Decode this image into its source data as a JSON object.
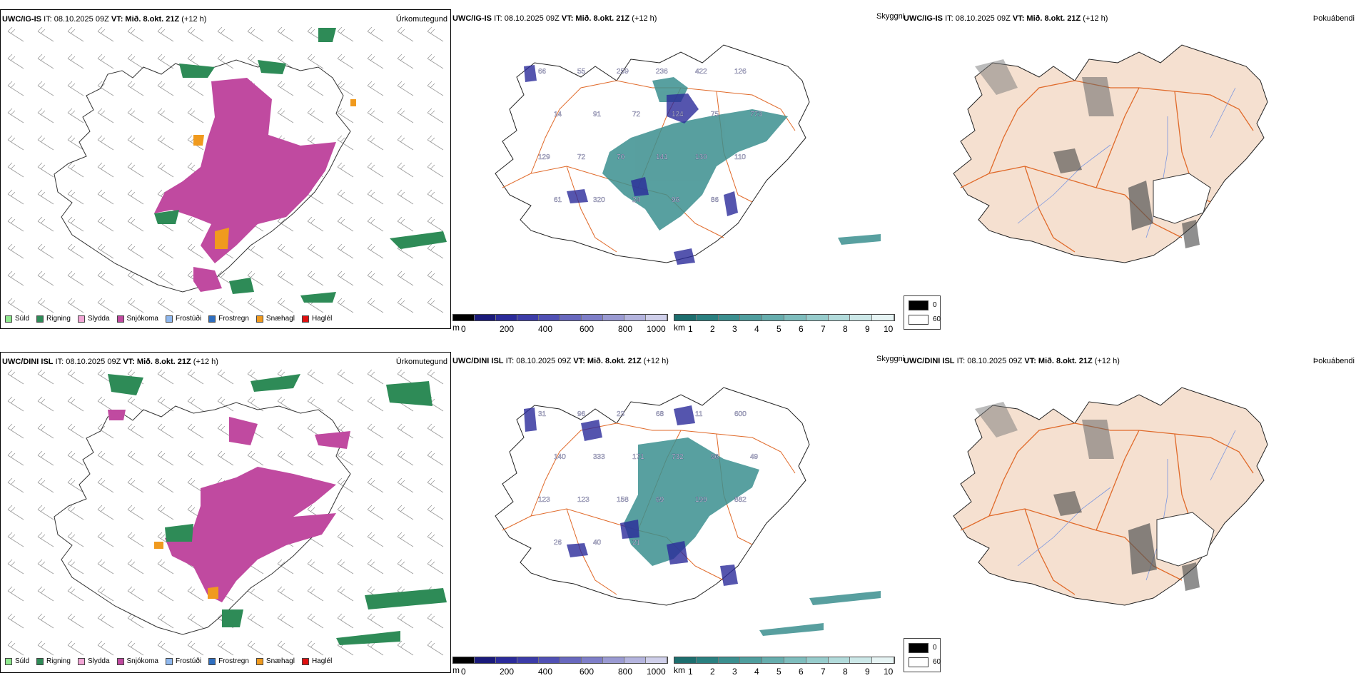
{
  "rows": [
    {
      "left_header": {
        "model": "UWC/IG-IS",
        "it": "IT: 08.10.2025 09Z",
        "vt": "VT: Mið. 8.okt. 21Z",
        "lead": "(+12 h)"
      },
      "left_title": "Úrkomutegund",
      "middle_header": {
        "model": "UWC/IG-IS",
        "it": "IT: 08.10.2025 09Z",
        "vt": "VT: Mið. 8.okt. 21Z",
        "lead": "(+12 h)"
      },
      "middle_title": "Skyggni",
      "right_header": {
        "model": "UWC/IG-IS",
        "it": "IT: 08.10.2025 09Z",
        "vt": "VT: Mið. 8.okt. 21Z",
        "lead": "(+12 h)"
      },
      "right_title": "Þokuábendi",
      "map_labels": [
        "66",
        "55",
        "259",
        "236",
        "422",
        "126",
        "14",
        "91",
        "72",
        "124",
        "75",
        "773",
        "129",
        "72",
        "70",
        "141",
        "130",
        "110",
        "61",
        "320",
        "24",
        "96",
        "86"
      ]
    },
    {
      "left_header": {
        "model": "UWC/DINI ISL",
        "it": "IT: 08.10.2025 09Z",
        "vt": "VT: Mið. 8.okt. 21Z",
        "lead": "(+12 h)"
      },
      "left_title": "Úrkomutegund",
      "middle_header": {
        "model": "UWC/DINI ISL",
        "it": "IT: 08.10.2025 09Z",
        "vt": "VT: Mið. 8.okt. 21Z",
        "lead": "(+12 h)"
      },
      "middle_title": "Skyggni",
      "right_header": {
        "model": "UWC/DINI ISL",
        "it": "IT: 08.10.2025 09Z",
        "vt": "VT: Mið. 8.okt. 21Z",
        "lead": "(+12 h)"
      },
      "right_title": "Þokuábendi",
      "map_labels": [
        "31",
        "96",
        "23",
        "68",
        "11",
        "600",
        "140",
        "333",
        "171",
        "732",
        "96",
        "49",
        "123",
        "123",
        "158",
        "69",
        "199",
        "882",
        "26",
        "40",
        "21"
      ]
    }
  ],
  "precip_legend": [
    {
      "label": "Súld",
      "color": "#8ee88e"
    },
    {
      "label": "Rigning",
      "color": "#2e8b57"
    },
    {
      "label": "Slydda",
      "color": "#f2a6d6"
    },
    {
      "label": "Snjókoma",
      "color": "#c04aa0"
    },
    {
      "label": "Frostúði",
      "color": "#8fb8ee"
    },
    {
      "label": "Frostregn",
      "color": "#2f6fc0"
    },
    {
      "label": "Snæhagl",
      "color": "#f09a1e"
    },
    {
      "label": "Haglél",
      "color": "#e01010"
    }
  ],
  "m_scale": {
    "unit": "m",
    "ticks": [
      "0",
      "200",
      "400",
      "600",
      "800",
      "1000"
    ],
    "colors": [
      "#000000",
      "#1a1a7a",
      "#2b2b9a",
      "#3c3ca8",
      "#5050b4",
      "#6868be",
      "#7e7ec8",
      "#9a9ad2",
      "#b4b4de",
      "#cfcfea"
    ]
  },
  "km_scale": {
    "unit": "km",
    "ticks": [
      "1",
      "2",
      "3",
      "4",
      "5",
      "6",
      "7",
      "8",
      "9",
      "10"
    ],
    "colors": [
      "#1d6e6e",
      "#2a8080",
      "#3b8f8f",
      "#4f9e9e",
      "#66adad",
      "#7ebdbd",
      "#97cccc",
      "#b2dbdb",
      "#cce8e8",
      "#e6f4f4"
    ]
  },
  "vis_legend": {
    "labels": [
      "0",
      "60"
    ],
    "colors": [
      "#000000",
      "#ffffff"
    ]
  },
  "colors": {
    "snow": "#c04aa0",
    "rain": "#2e8b57",
    "teal": "#3b8f8f",
    "navy": "#2b2b9a",
    "land": "#f5e0d0",
    "roads": "#e06a2a",
    "rivers": "#7a96e0"
  }
}
